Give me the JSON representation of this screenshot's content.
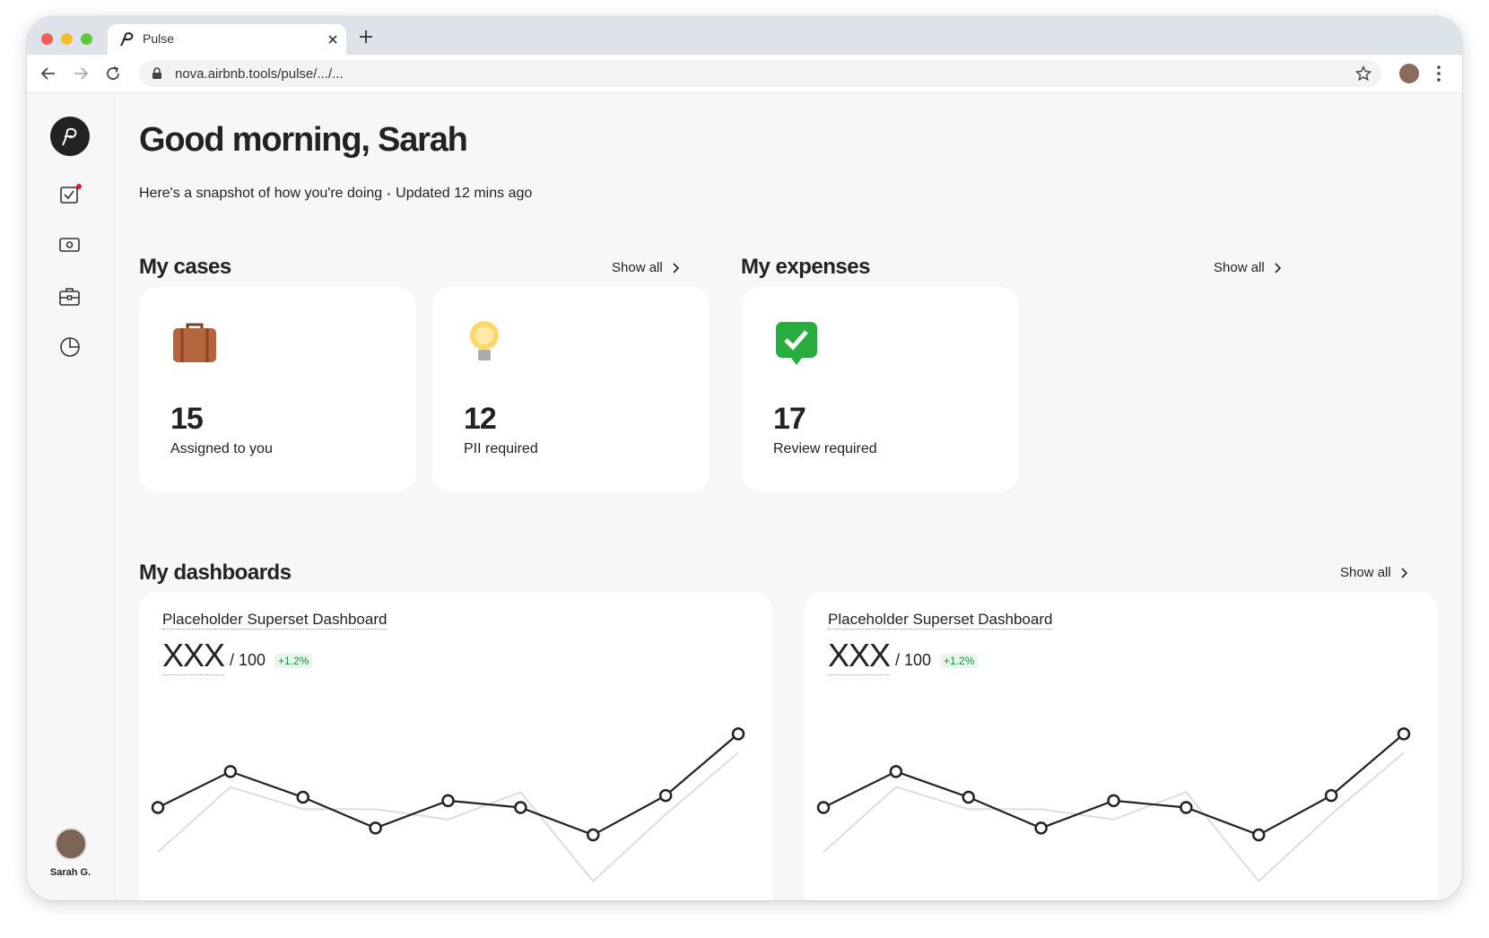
{
  "browser": {
    "tab_title": "Pulse",
    "url": "nova.airbnb.tools/pulse/.../..."
  },
  "sidebar": {
    "user_name": "Sarah G."
  },
  "header": {
    "title": "Good morning, Sarah",
    "subtitle": "Here's a snapshot of how you're doing",
    "updated": "Updated 12 mins ago"
  },
  "cases": {
    "title": "My cases",
    "show_all": "Show all",
    "cards": [
      {
        "value": 15,
        "label": "Assigned to you"
      },
      {
        "value": 12,
        "label": "PII required"
      }
    ]
  },
  "expenses": {
    "title": "My expenses",
    "show_all": "Show all",
    "cards": [
      {
        "value": 17,
        "label": "Review required"
      }
    ]
  },
  "dashboards": {
    "title": "My dashboards",
    "show_all": "Show all",
    "items": [
      {
        "title": "Placeholder Superset Dashboard",
        "metric": "XXX",
        "denominator": "/ 100",
        "change": "+1.2%",
        "chart_data": {
          "type": "line",
          "ylim": [
            0,
            100
          ],
          "series": [
            {
              "color": "#dddddd",
              "values": [
                24,
                62,
                49,
                49,
                43,
                59,
                7,
                46,
                82
              ]
            },
            {
              "color": "#222222",
              "values": [
                50,
                71,
                56,
                38,
                54,
                50,
                34,
                57,
                93
              ]
            }
          ]
        }
      },
      {
        "title": "Placeholder Superset Dashboard",
        "metric": "XXX",
        "denominator": "/ 100",
        "change": "+1.2%",
        "chart_data": {
          "type": "line",
          "ylim": [
            0,
            100
          ],
          "series": [
            {
              "color": "#dddddd",
              "values": [
                24,
                62,
                49,
                49,
                43,
                59,
                7,
                46,
                82
              ]
            },
            {
              "color": "#222222",
              "values": [
                50,
                71,
                56,
                38,
                54,
                50,
                34,
                57,
                93
              ]
            }
          ]
        }
      }
    ]
  }
}
